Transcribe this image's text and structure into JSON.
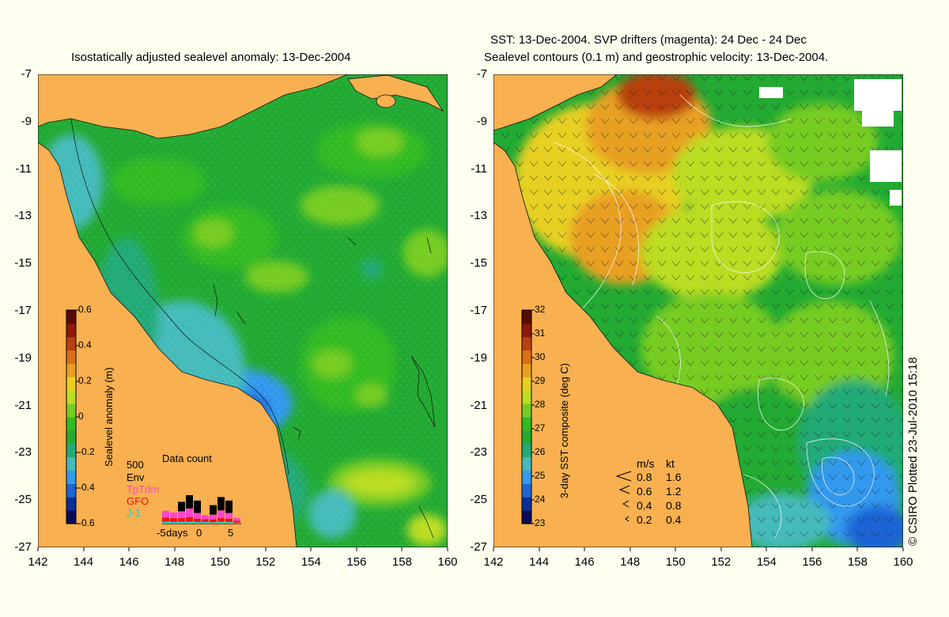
{
  "left_panel": {
    "title": "Isostatically adjusted sealevel anomaly: 13-Dec-2004",
    "colorbar": {
      "label": "Sealevel anomaly (m)",
      "ticks": [
        "0.6",
        "0.4",
        "0.2",
        "0",
        "-0.2",
        "-0.4",
        "-0.6"
      ],
      "colors": [
        "#0a0a5a",
        "#0b2f9a",
        "#1e64d6",
        "#3399ee",
        "#44bbbb",
        "#22aa77",
        "#22aa33",
        "#33bb22",
        "#77cc22",
        "#bbdd22",
        "#e8d020",
        "#e8a020",
        "#d87018",
        "#b84010",
        "#8a1a08",
        "#5a0a04"
      ]
    },
    "data_count": {
      "title": "Data count",
      "max_label": "500",
      "legend": [
        {
          "name": "Env",
          "color": "#000000"
        },
        {
          "name": "TpTdm",
          "color": "#ff44cc"
        },
        {
          "name": "GFO",
          "color": "#ee1111"
        },
        {
          "name": "J-1",
          "color": "#22cccc"
        }
      ],
      "x_ticks": [
        "-5",
        "days",
        "0",
        "5"
      ],
      "bars": [
        {
          "day": -5,
          "env": 0,
          "tp": 70,
          "gfo": 45,
          "j1": 20
        },
        {
          "day": -4,
          "env": 0,
          "tp": 60,
          "gfo": 40,
          "j1": 18
        },
        {
          "day": -3,
          "env": 100,
          "tp": 70,
          "gfo": 40,
          "j1": 20
        },
        {
          "day": -2,
          "env": 140,
          "tp": 90,
          "gfo": 50,
          "j1": 20
        },
        {
          "day": -1,
          "env": 130,
          "tp": 60,
          "gfo": 35,
          "j1": 18
        },
        {
          "day": 0,
          "env": 0,
          "tp": 40,
          "gfo": 30,
          "j1": 18
        },
        {
          "day": 1,
          "env": 100,
          "tp": 50,
          "gfo": 30,
          "j1": 15
        },
        {
          "day": 2,
          "env": 140,
          "tp": 80,
          "gfo": 40,
          "j1": 20
        },
        {
          "day": 3,
          "env": 130,
          "tp": 60,
          "gfo": 35,
          "j1": 18
        },
        {
          "day": 4,
          "env": 0,
          "tp": 30,
          "gfo": 20,
          "j1": 10
        }
      ]
    }
  },
  "right_panel": {
    "title_line1": "SST: 13-Dec-2004. SVP drifters (magenta): 24 Dec - 24 Dec",
    "title_line2": "Sealevel contours (0.1 m) and geostrophic velocity: 13-Dec-2004.",
    "colorbar": {
      "label": "3-day SST composite (deg C)",
      "ticks": [
        "32",
        "31",
        "30",
        "29",
        "28",
        "27",
        "26",
        "25",
        "24",
        "23"
      ],
      "colors": [
        "#0a0a5a",
        "#0b2f9a",
        "#1e64d6",
        "#3399ee",
        "#44bbbb",
        "#22aa77",
        "#22aa33",
        "#33bb22",
        "#77cc22",
        "#bbdd22",
        "#e8d020",
        "#e8a020",
        "#d87018",
        "#b84010",
        "#8a1a08",
        "#5a0a04"
      ]
    },
    "velocity_legend": {
      "header": [
        "m/s",
        "kt"
      ],
      "rows": [
        {
          "ms": "0.8",
          "kt": "1.6"
        },
        {
          "ms": "0.6",
          "kt": "1.2"
        },
        {
          "ms": "0.4",
          "kt": "0.8"
        },
        {
          "ms": "0.2",
          "kt": "0.4"
        }
      ]
    }
  },
  "axes": {
    "lat_ticks": [
      "-7",
      "-9",
      "-11",
      "-13",
      "-15",
      "-17",
      "-19",
      "-21",
      "-23",
      "-25",
      "-27"
    ],
    "lon_ticks": [
      "142",
      "144",
      "146",
      "148",
      "150",
      "152",
      "154",
      "156",
      "158",
      "160"
    ]
  },
  "credit": "© CSIRO Plotted 23-Jul-2010 15:18",
  "colors": {
    "land": "#f8b050",
    "background": "#fffff0"
  }
}
